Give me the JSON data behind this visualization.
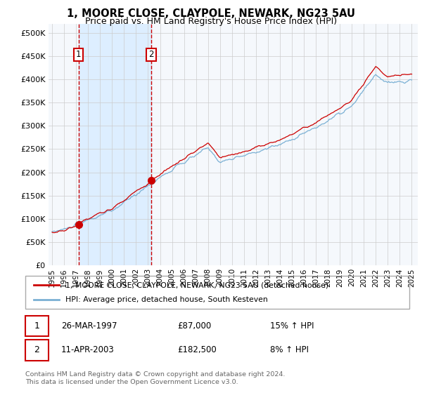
{
  "title": "1, MOORE CLOSE, CLAYPOLE, NEWARK, NG23 5AU",
  "subtitle": "Price paid vs. HM Land Registry's House Price Index (HPI)",
  "ylabel_ticks": [
    "£0",
    "£50K",
    "£100K",
    "£150K",
    "£200K",
    "£250K",
    "£300K",
    "£350K",
    "£400K",
    "£450K",
    "£500K"
  ],
  "ytick_values": [
    0,
    50000,
    100000,
    150000,
    200000,
    250000,
    300000,
    350000,
    400000,
    450000,
    500000
  ],
  "ylim": [
    0,
    520000
  ],
  "xlim_start": 1994.7,
  "xlim_end": 2025.5,
  "xtick_years": [
    1995,
    1996,
    1997,
    1998,
    1999,
    2000,
    2001,
    2002,
    2003,
    2004,
    2005,
    2006,
    2007,
    2008,
    2009,
    2010,
    2011,
    2012,
    2013,
    2014,
    2015,
    2016,
    2017,
    2018,
    2019,
    2020,
    2021,
    2022,
    2023,
    2024,
    2025
  ],
  "sale1_x": 1997.21,
  "sale1_y": 87000,
  "sale1_label": "1",
  "sale2_x": 2003.27,
  "sale2_y": 182500,
  "sale2_label": "2",
  "line_color_red": "#cc0000",
  "line_color_blue": "#7ab0d4",
  "shade_color": "#ddeeff",
  "background_color": "#ffffff",
  "plot_bg_color": "#f5f8fc",
  "grid_color": "#cccccc",
  "legend_line1": "1, MOORE CLOSE, CLAYPOLE, NEWARK, NG23 5AU (detached house)",
  "legend_line2": "HPI: Average price, detached house, South Kesteven",
  "table_row1": [
    "1",
    "26-MAR-1997",
    "£87,000",
    "15% ↑ HPI"
  ],
  "table_row2": [
    "2",
    "11-APR-2003",
    "£182,500",
    "8% ↑ HPI"
  ],
  "footer": "Contains HM Land Registry data © Crown copyright and database right 2024.\nThis data is licensed under the Open Government Licence v3.0.",
  "title_fontsize": 10.5,
  "subtitle_fontsize": 9
}
